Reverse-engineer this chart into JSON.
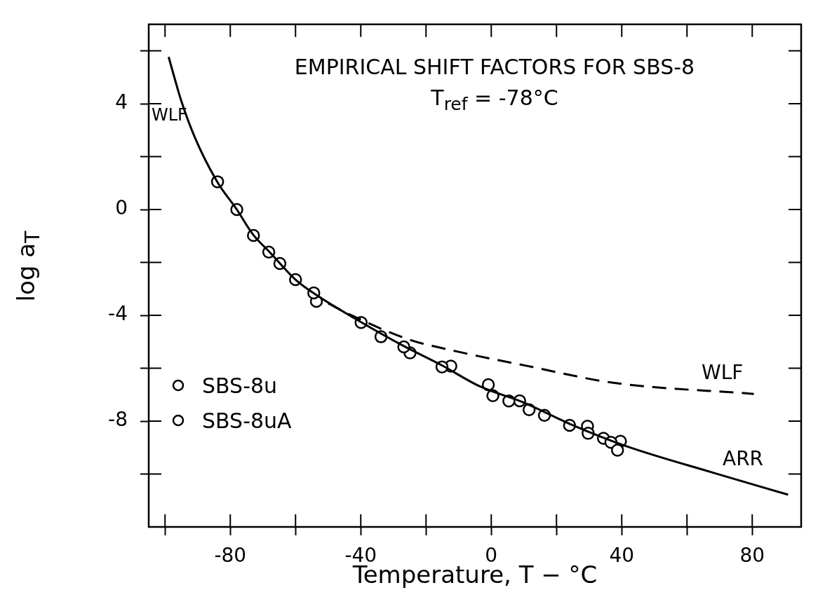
{
  "chart_data": {
    "type": "scatter",
    "title": "EMPIRICAL SHIFT FACTORS FOR SBS-8",
    "subtitle": "T$_{ref}$ = -78°C",
    "xlabel": "Temperature, T − °C",
    "ylabel": "log a$_{T}$",
    "xlim": [
      -105,
      95
    ],
    "xticks": [
      {
        "value": -100,
        "label": null
      },
      -80,
      {
        "value": -60,
        "label": null
      },
      -40,
      {
        "value": -20,
        "label": null
      },
      0,
      {
        "value": 20,
        "label": null
      },
      40,
      {
        "value": 60,
        "label": null
      },
      80
    ],
    "ylim": [
      -12,
      7
    ],
    "yticks": [
      {
        "value": -10,
        "label": null
      },
      -8,
      {
        "value": -6,
        "label": null
      },
      -4,
      {
        "value": -2,
        "label": null
      },
      0,
      {
        "value": 2,
        "label": null
      },
      4,
      {
        "value": 6,
        "label": null
      }
    ],
    "grid": false,
    "legend": "left",
    "annotations": [
      "WLF",
      "WLF",
      "ARR"
    ],
    "series": [
      {
        "type": "line",
        "color": "#000000",
        "line_style": "solid",
        "x": [
          -98.9,
          -95,
          -90.7,
          -84,
          -78,
          -73,
          -68,
          -60,
          -54,
          -40,
          -27,
          -15,
          -3.6,
          10,
          24,
          41,
          68,
          91
        ],
        "values": [
          5.77,
          4.1,
          2.68,
          1.05,
          0,
          -0.95,
          -1.6,
          -2.65,
          -3.2,
          -4.25,
          -5.15,
          -5.9,
          -6.68,
          -7.3,
          -8.1,
          -8.93,
          -9.95,
          -10.78
        ]
      },
      {
        "type": "line",
        "color": "#000000",
        "line_style": "dashed",
        "x": [
          -50,
          -43.7,
          -25.1,
          -10.7,
          10.9,
          37.4,
          80.5
        ],
        "values": [
          -3.55,
          -3.95,
          -4.92,
          -5.36,
          -5.91,
          -6.55,
          -6.97
        ]
      },
      {
        "name": "SBS-8u",
        "color": "#000000",
        "x": [
          -83.9,
          -72.9,
          -64.8,
          -54.4,
          -39.9,
          -26.8,
          -15.1,
          -0.9,
          5.4,
          11.6,
          24.0,
          29.7,
          36.7,
          38.7
        ],
        "values": [
          1.05,
          -0.98,
          -2.04,
          -3.15,
          -4.27,
          -5.19,
          -5.95,
          -6.62,
          -7.24,
          -7.57,
          -8.16,
          -8.46,
          -8.8,
          -9.1
        ]
      },
      {
        "name": "SBS-8uA",
        "color": "#000000",
        "x": [
          -78,
          -68.2,
          -60.0,
          -53.6,
          -33.8,
          -24.9,
          -12.4,
          0.5,
          8.7,
          16.3,
          29.5,
          34.4,
          39.6
        ],
        "values": [
          0,
          -1.61,
          -2.65,
          -3.47,
          -4.81,
          -5.42,
          -5.92,
          -7.04,
          -7.23,
          -7.78,
          -8.19,
          -8.65,
          -8.76
        ]
      }
    ]
  }
}
